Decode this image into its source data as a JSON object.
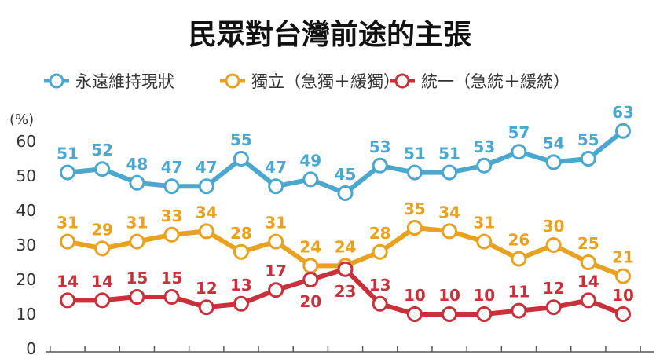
{
  "chart_data": {
    "type": "line",
    "title": "民眾對台灣前途的主張",
    "ylabel": "(%)",
    "ylim": [
      0,
      60
    ],
    "yticks": [
      "0",
      "10",
      "20",
      "30",
      "40",
      "50",
      "60"
    ],
    "grid": false,
    "legend_position": "top",
    "series": [
      {
        "name": "永遠維持現狀",
        "color": "#4aa8cf",
        "values": [
          51,
          52,
          48,
          47,
          47,
          55,
          47,
          49,
          45,
          53,
          51,
          51,
          53,
          57,
          54,
          55,
          63
        ],
        "labels": [
          "51",
          "52",
          "48",
          "47",
          "47",
          "55",
          "47",
          "49",
          "45",
          "53",
          "51",
          "51",
          "53",
          "57",
          "54",
          "55",
          "63"
        ]
      },
      {
        "name": "獨立（急獨＋緩獨）",
        "color": "#e8a21f",
        "values": [
          31,
          29,
          31,
          33,
          34,
          28,
          31,
          24,
          24,
          28,
          35,
          34,
          31,
          26,
          30,
          25,
          21
        ],
        "labels": [
          "31",
          "29",
          "31",
          "33",
          "34",
          "28",
          "31",
          "24",
          "24",
          "28",
          "35",
          "34",
          "31",
          "26",
          "30",
          "25",
          "21"
        ]
      },
      {
        "name": "統一（急統＋緩統）",
        "color": "#c8303a",
        "values": [
          14,
          14,
          15,
          15,
          12,
          13,
          17,
          20,
          23,
          13,
          10,
          10,
          10,
          11,
          12,
          14,
          10
        ],
        "labels": [
          "14",
          "14",
          "15",
          "15",
          "12",
          "13",
          "17",
          "20",
          "23",
          "13",
          "10",
          "10",
          "10",
          "11",
          "12",
          "14",
          "10"
        ]
      }
    ]
  }
}
